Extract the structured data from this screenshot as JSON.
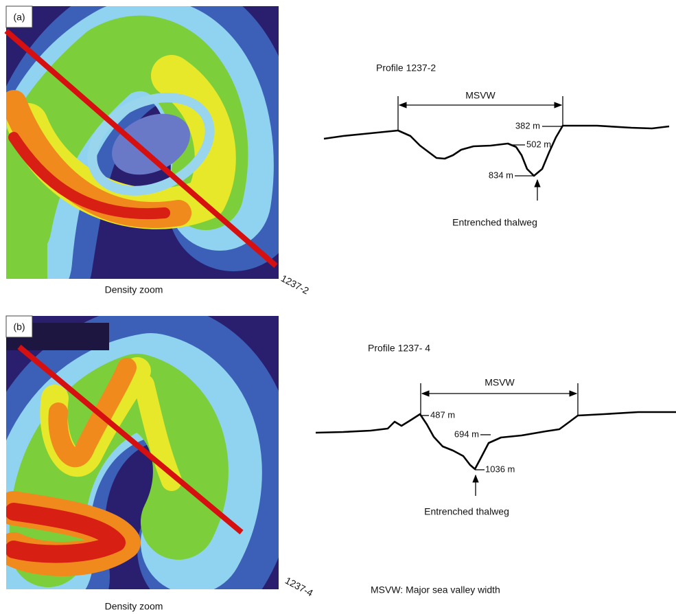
{
  "panels": [
    {
      "label": "(a)",
      "caption": "Density zoom",
      "line_label": "1237-2",
      "profile_title": "Profile 1237-2",
      "width_label": "MSVW",
      "depths": [
        "382 m",
        "502 m",
        "834 m"
      ],
      "thalweg": "Entrenched thalweg"
    },
    {
      "label": "(b)",
      "caption": "Density zoom",
      "line_label": "1237-4",
      "profile_title": "Profile 1237- 4",
      "width_label": "MSVW",
      "depths": [
        "487 m",
        "694 m",
        "1036 m"
      ],
      "thalweg": "Entrenched thalweg"
    }
  ],
  "footnote": "MSVW: Major sea valley width"
}
